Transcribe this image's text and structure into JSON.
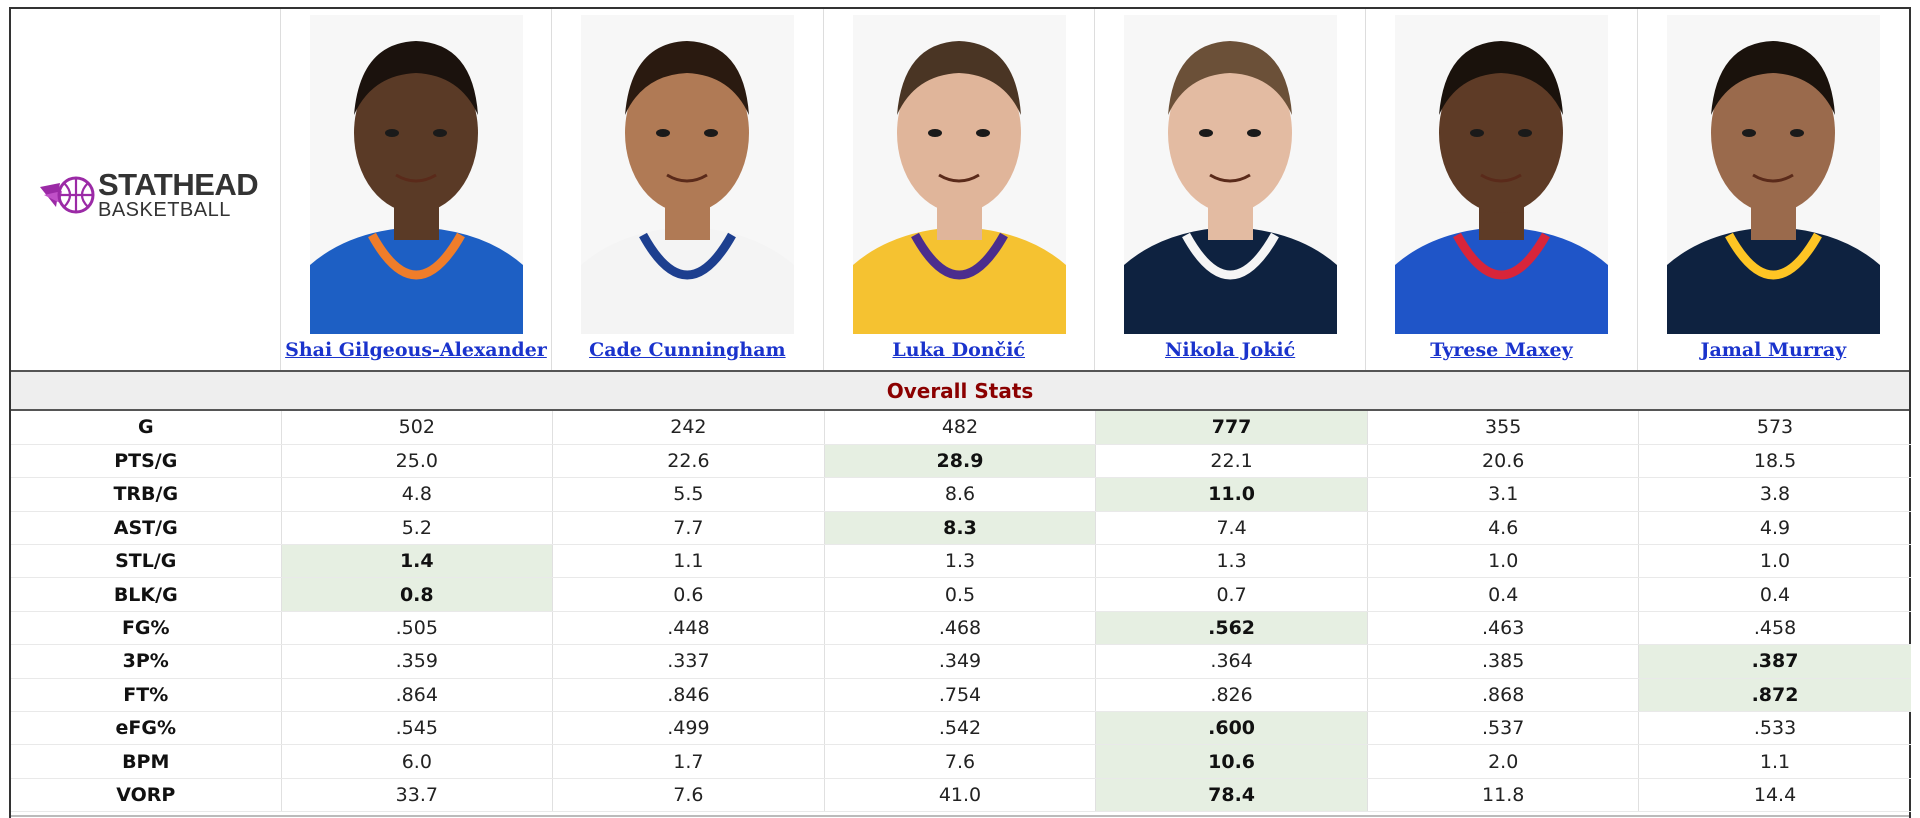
{
  "logo": {
    "line1": "STATHEAD",
    "line2": "BASKETBALL",
    "accent_color": "#9b2aa6"
  },
  "players": [
    {
      "name": "Shai Gilgeous-Alexander",
      "jersey_color": "#1d5fc4",
      "trim_color": "#ef7d2a",
      "skin": "#5a3a26",
      "hair": "#1b120d"
    },
    {
      "name": "Cade Cunningham",
      "jersey_color": "#f4f4f4",
      "trim_color": "#1d3f8f",
      "skin": "#b07a55",
      "hair": "#2a1a10"
    },
    {
      "name": "Luka Dončić",
      "jersey_color": "#f5c231",
      "trim_color": "#4b2d8e",
      "skin": "#e0b59a",
      "hair": "#4a3524"
    },
    {
      "name": "Nikola Jokić",
      "jersey_color": "#0e2240",
      "trim_color": "#f5f5f5",
      "skin": "#e3bba2",
      "hair": "#6b5038"
    },
    {
      "name": "Tyrese Maxey",
      "jersey_color": "#1f55c8",
      "trim_color": "#d8253a",
      "skin": "#5e3b26",
      "hair": "#1a120c"
    },
    {
      "name": "Jamal Murray",
      "jersey_color": "#0e2240",
      "trim_color": "#fec524",
      "skin": "#9a6a4c",
      "hair": "#1a120c"
    }
  ],
  "section_title": "Overall Stats",
  "highlight_color": "#e6efe2",
  "stats": [
    {
      "label": "G",
      "values": [
        "502",
        "242",
        "482",
        "777",
        "355",
        "573"
      ],
      "best": [
        3
      ]
    },
    {
      "label": "PTS/G",
      "values": [
        "25.0",
        "22.6",
        "28.9",
        "22.1",
        "20.6",
        "18.5"
      ],
      "best": [
        2
      ]
    },
    {
      "label": "TRB/G",
      "values": [
        "4.8",
        "5.5",
        "8.6",
        "11.0",
        "3.1",
        "3.8"
      ],
      "best": [
        3
      ]
    },
    {
      "label": "AST/G",
      "values": [
        "5.2",
        "7.7",
        "8.3",
        "7.4",
        "4.6",
        "4.9"
      ],
      "best": [
        2
      ]
    },
    {
      "label": "STL/G",
      "values": [
        "1.4",
        "1.1",
        "1.3",
        "1.3",
        "1.0",
        "1.0"
      ],
      "best": [
        0
      ]
    },
    {
      "label": "BLK/G",
      "values": [
        "0.8",
        "0.6",
        "0.5",
        "0.7",
        "0.4",
        "0.4"
      ],
      "best": [
        0
      ]
    },
    {
      "label": "FG%",
      "values": [
        ".505",
        ".448",
        ".468",
        ".562",
        ".463",
        ".458"
      ],
      "best": [
        3
      ]
    },
    {
      "label": "3P%",
      "values": [
        ".359",
        ".337",
        ".349",
        ".364",
        ".385",
        ".387"
      ],
      "best": [
        5
      ]
    },
    {
      "label": "FT%",
      "values": [
        ".864",
        ".846",
        ".754",
        ".826",
        ".868",
        ".872"
      ],
      "best": [
        5
      ]
    },
    {
      "label": "eFG%",
      "values": [
        ".545",
        ".499",
        ".542",
        ".600",
        ".537",
        ".533"
      ],
      "best": [
        3
      ]
    },
    {
      "label": "BPM",
      "values": [
        "6.0",
        "1.7",
        "7.6",
        "10.6",
        "2.0",
        "1.1"
      ],
      "best": [
        3
      ]
    },
    {
      "label": "VORP",
      "values": [
        "33.7",
        "7.6",
        "41.0",
        "78.4",
        "11.8",
        "14.4"
      ],
      "best": [
        3
      ]
    }
  ]
}
